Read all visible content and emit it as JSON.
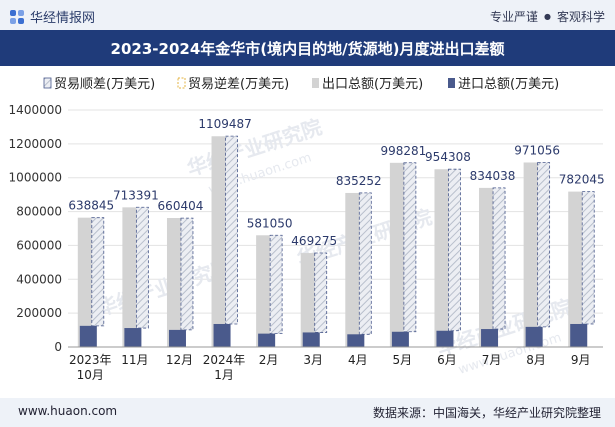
{
  "header": {
    "brand": "华经情报网",
    "tag_left": "专业严谨",
    "tag_sep": "●",
    "tag_right": "客观科学"
  },
  "footer": {
    "website": "www.huaon.com",
    "source": "数据来源：中国海关，华经产业研究院整理"
  },
  "watermark": "华经产业研究院",
  "watermark_url": "www.huaon.com",
  "colors": {
    "export": "#d3d3d3",
    "import": "#4a5a8c",
    "surplus_stroke": "#4a5a8c",
    "banner": "#1f3b7a",
    "hatch": "#b8bfcc"
  },
  "chart_data": {
    "type": "bar",
    "title": "2023-2024年金华市(境内目的地/货源地)月度进出口差额",
    "categories": [
      "2023年10月",
      "11月",
      "12月",
      "2024年1月",
      "2月",
      "3月",
      "4月",
      "5月",
      "6月",
      "7月",
      "8月",
      "9月"
    ],
    "series": [
      {
        "name": "贸易顺差(万美元)",
        "values": [
          638845,
          713391,
          660404,
          1109487,
          581050,
          469275,
          835252,
          998281,
          954308,
          834038,
          971056,
          782045
        ]
      },
      {
        "name": "贸易逆差(万美元)",
        "values": [
          0,
          0,
          0,
          0,
          0,
          0,
          0,
          0,
          0,
          0,
          0,
          0
        ]
      },
      {
        "name": "出口总额(万美元)",
        "values": [
          764000,
          825000,
          762000,
          1245000,
          660000,
          555000,
          910000,
          1088000,
          1050000,
          940000,
          1090000,
          918000
        ]
      },
      {
        "name": "进口总额(万美元)",
        "values": [
          125000,
          112000,
          101000,
          136000,
          79000,
          86000,
          75000,
          90000,
          96000,
          106000,
          119000,
          136000
        ]
      }
    ],
    "ylim": [
      0,
      1400000
    ],
    "yticks": [
      "0",
      "200000",
      "400000",
      "600000",
      "800000",
      "1000000",
      "1200000",
      "1400000"
    ],
    "grid": true,
    "legend_position": "top"
  }
}
